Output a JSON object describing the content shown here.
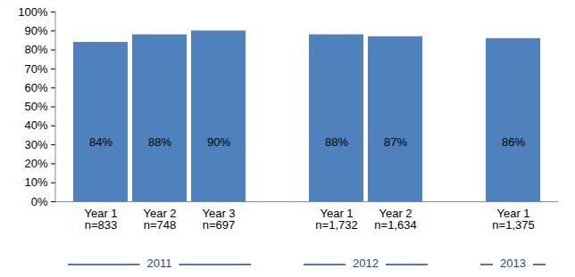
{
  "chart_data": {
    "type": "bar",
    "categories": [
      "Year 1\nn=833",
      "Year 2\nn=748",
      "Year 3\nn=697",
      null,
      "Year 1\nn=1,732",
      "Year 2\nn=1,634",
      null,
      "Year 1\nn=1,375"
    ],
    "values": [
      84,
      88,
      90,
      null,
      88,
      87,
      null,
      86
    ],
    "value_labels": [
      "84%",
      "88%",
      "90%",
      null,
      "88%",
      "87%",
      null,
      "86%"
    ],
    "data_labels": true,
    "color": "#4f81bd",
    "ylim": [
      0,
      100
    ],
    "yticks": [
      {
        "value": 0,
        "label": "0%"
      },
      {
        "value": 10,
        "label": "10%"
      },
      {
        "value": 20,
        "label": "20%"
      },
      {
        "value": 30,
        "label": "30%"
      },
      {
        "value": 40,
        "label": "40%"
      },
      {
        "value": 50,
        "label": "50%"
      },
      {
        "value": 60,
        "label": "60%"
      },
      {
        "value": 70,
        "label": "70%"
      },
      {
        "value": 80,
        "label": "80%"
      },
      {
        "value": 90,
        "label": "90%"
      },
      {
        "value": 100,
        "label": "100%"
      }
    ],
    "grid": false,
    "groups": [
      {
        "name": "2011",
        "first": 0,
        "last": 2
      },
      {
        "name": "2012",
        "first": 4,
        "last": 5
      },
      {
        "name": "2013",
        "first": 7,
        "last": 7
      }
    ]
  }
}
